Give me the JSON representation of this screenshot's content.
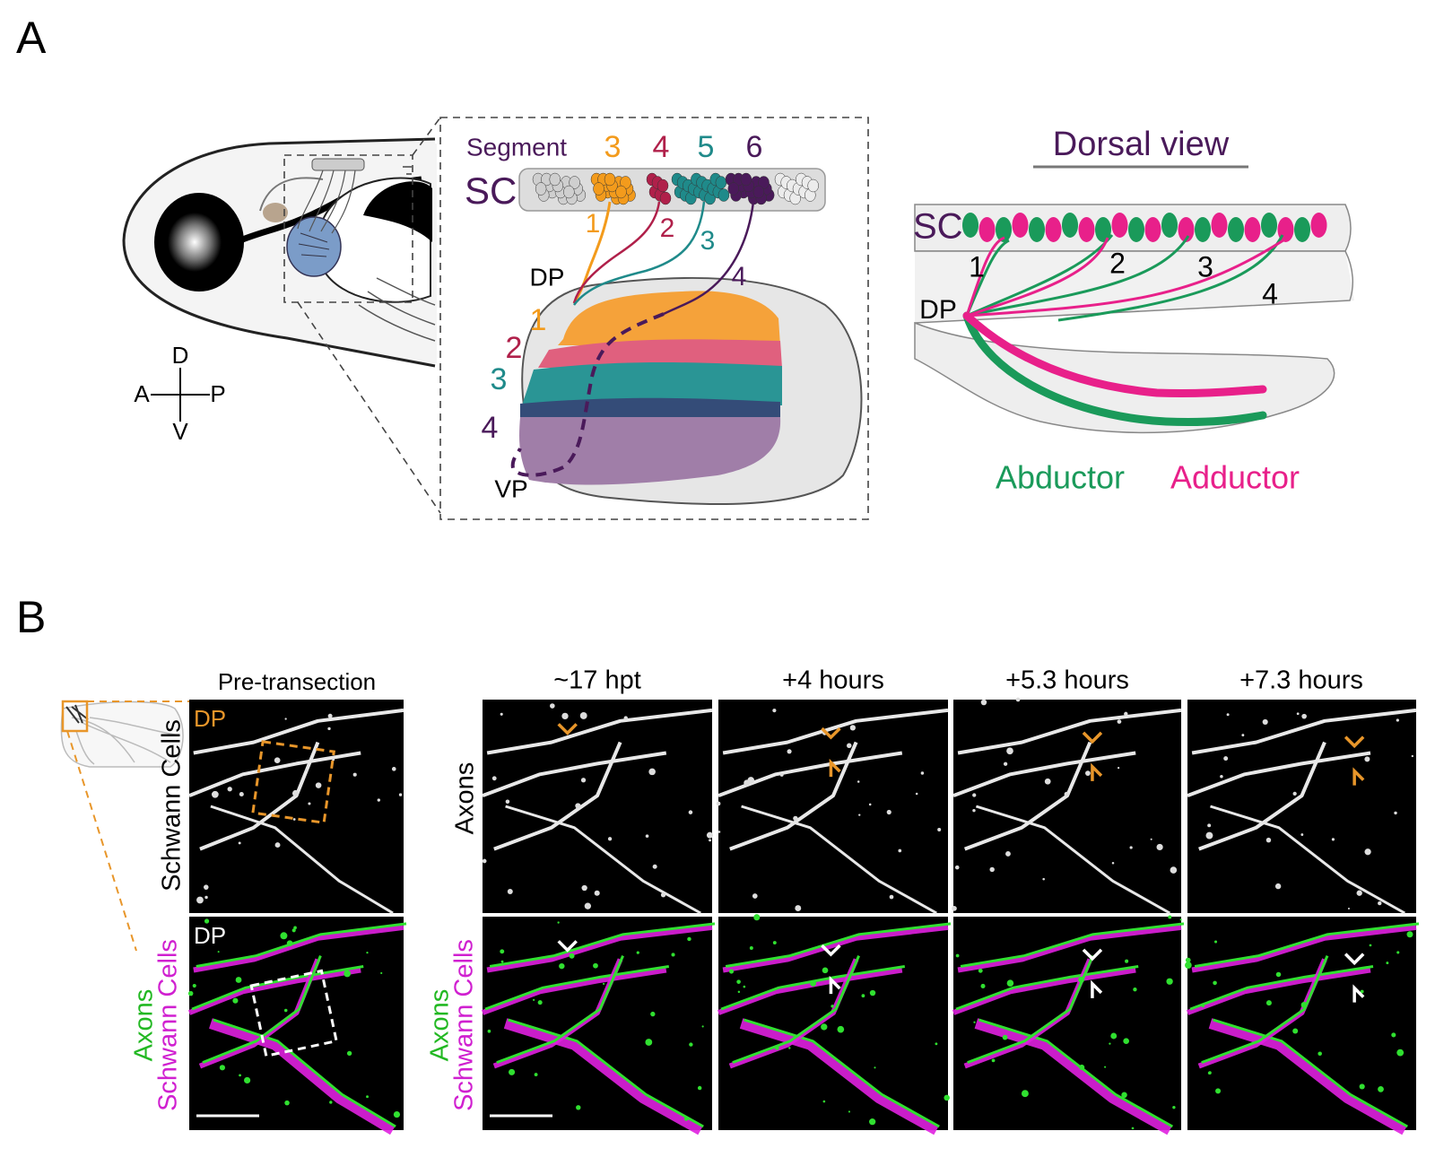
{
  "panel_a": {
    "label": "A",
    "lateral_view": {
      "compass": {
        "dorsal": "D",
        "ventral": "V",
        "anterior": "A",
        "posterior": "P"
      }
    },
    "inset": {
      "segment_label": "Segment",
      "segments": [
        "3",
        "4",
        "5",
        "6"
      ],
      "sc_label": "SC",
      "nerves": [
        "1",
        "2",
        "3",
        "4"
      ],
      "dp_label": "DP",
      "regions": [
        "1",
        "2",
        "3",
        "4"
      ],
      "vp_label": "VP"
    },
    "dorsal_view": {
      "title": "Dorsal view",
      "sc_label": "SC",
      "nerves": [
        "1",
        "2",
        "3",
        "4"
      ],
      "dp_label": "DP",
      "legend": [
        "Abductor",
        "Adductor"
      ]
    }
  },
  "panel_b": {
    "label": "B",
    "pre_transection": {
      "title": "Pre-transection",
      "top_tag": "DP",
      "bottom_tag": "DP",
      "top_label": "Schwann Cells",
      "bottom_label": [
        "Axons",
        "Schwann Cells"
      ]
    },
    "timepoints": [
      "~17 hpt",
      "+4 hours",
      "+5.3 hours",
      "+7.3 hours"
    ],
    "row_labels": {
      "top": "Axons",
      "bottom": [
        "Axons",
        "Schwann Cells"
      ]
    }
  }
}
